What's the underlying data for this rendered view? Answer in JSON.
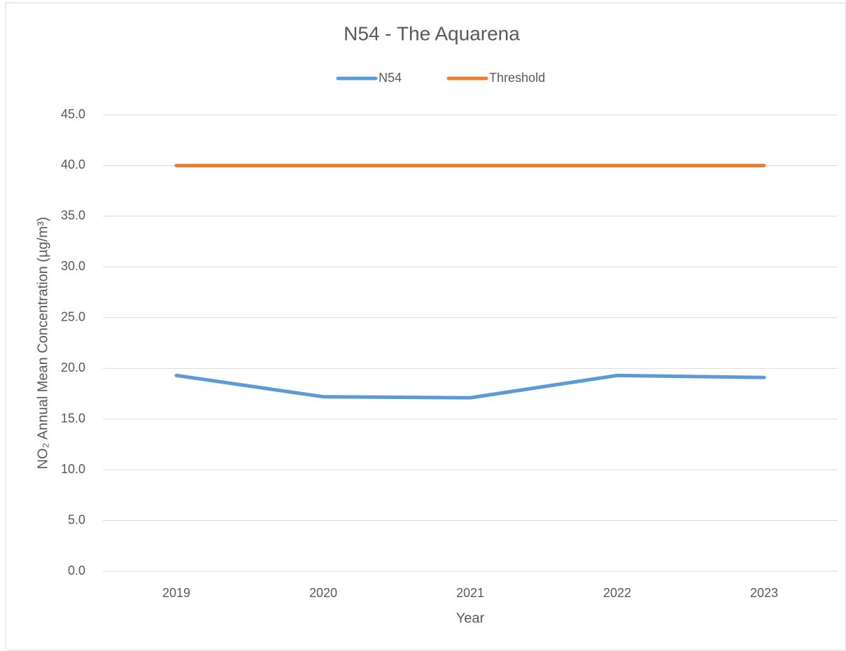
{
  "chart_data": {
    "type": "line",
    "title": "N54 - The Aquarena",
    "categories": [
      "2019",
      "2020",
      "2021",
      "2022",
      "2023"
    ],
    "series": [
      {
        "name": "N54",
        "color": "#5b9bd5",
        "values": [
          19.3,
          17.2,
          17.1,
          19.3,
          19.1
        ]
      },
      {
        "name": "Threshold",
        "color": "#ed7d31",
        "values": [
          40,
          40,
          40,
          40,
          40
        ]
      }
    ],
    "x_label": "Year",
    "y_label": "NO₂ Annual Mean Concentration (µg/m³)",
    "ylim": [
      0,
      45
    ],
    "yticks": [
      {
        "value": 0,
        "label": "0.0"
      },
      {
        "value": 5,
        "label": "5.0"
      },
      {
        "value": 10,
        "label": "10.0"
      },
      {
        "value": 15,
        "label": "15.0"
      },
      {
        "value": 20,
        "label": "20.0"
      },
      {
        "value": 25,
        "label": "25.0"
      },
      {
        "value": 30,
        "label": "30.0"
      },
      {
        "value": 35,
        "label": "35.0"
      },
      {
        "value": 40,
        "label": "40.0"
      },
      {
        "value": 45,
        "label": "45.0"
      }
    ],
    "grid": true,
    "legend": "top"
  }
}
